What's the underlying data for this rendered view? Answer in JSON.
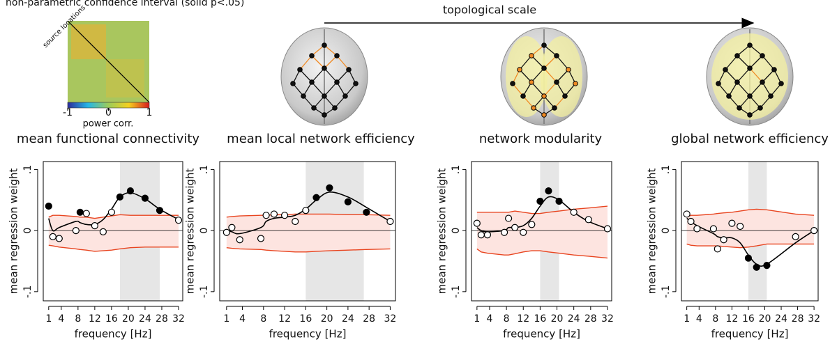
{
  "header": {
    "note": "non-parametric confidence interval (solid p<.05)"
  },
  "matrix": {
    "axis_label": "source locations"
  },
  "colorbar": {
    "label": "power corr.",
    "lim": [
      -1,
      1
    ],
    "ticks": [
      -1,
      0,
      1
    ]
  },
  "arrow_label": "topological scale",
  "chart_data": [
    {
      "type": "scatter",
      "title": "mean functional connectivity",
      "xlabel": "frequency [Hz]",
      "ylabel": "mean regression weight",
      "x": [
        1,
        2,
        3.5,
        7.5,
        8.5,
        10,
        12,
        14,
        16,
        18,
        20.5,
        24,
        27.5,
        32
      ],
      "values": [
        0.04,
        -0.01,
        -0.013,
        0.0,
        0.03,
        0.028,
        0.008,
        -0.002,
        0.03,
        0.055,
        0.065,
        0.053,
        0.033,
        0.017
      ],
      "significant": [
        true,
        false,
        false,
        false,
        true,
        false,
        false,
        false,
        false,
        true,
        true,
        true,
        true,
        false
      ],
      "fit": [
        0.02,
        0.0,
        0.005,
        0.015,
        0.013,
        0.01,
        0.01,
        0.018,
        0.035,
        0.055,
        0.062,
        0.052,
        0.035,
        0.018
      ],
      "ci_upper": [
        0.022,
        0.025,
        0.025,
        0.023,
        0.022,
        0.022,
        0.02,
        0.022,
        0.024,
        0.026,
        0.025,
        0.025,
        0.025,
        0.025
      ],
      "ci_lower": [
        -0.024,
        -0.025,
        -0.027,
        -0.03,
        -0.031,
        -0.032,
        -0.034,
        -0.033,
        -0.032,
        -0.03,
        -0.028,
        -0.027,
        -0.027,
        -0.027
      ],
      "highlight": [
        18,
        27.5
      ],
      "color": "#000000",
      "ci_color": "#e8441f",
      "ci_fill": "#fde4e0",
      "highlight_color": "#e6e6e6",
      "xlim": [
        -0.3,
        33
      ],
      "ylim": [
        -0.115,
        0.113
      ],
      "xticks": [
        1,
        4,
        8,
        12,
        16,
        20,
        24,
        28,
        32
      ],
      "yticks": [
        {
          "value": -0.1,
          "label": "-.1"
        },
        0,
        {
          "value": 0.1,
          "label": ".1"
        }
      ]
    },
    {
      "type": "scatter",
      "title": "mean local network efficiency",
      "xlabel": "frequency [Hz]",
      "ylabel": "mean regression weight",
      "x": [
        1,
        2,
        3.5,
        7.5,
        8.5,
        10,
        12,
        14,
        16,
        18,
        20.5,
        24,
        27.5,
        32
      ],
      "values": [
        -0.003,
        0.005,
        -0.015,
        -0.013,
        0.025,
        0.027,
        0.025,
        0.015,
        0.033,
        0.054,
        0.07,
        0.047,
        0.03,
        0.015
      ],
      "significant": [
        false,
        false,
        false,
        false,
        false,
        false,
        false,
        false,
        false,
        true,
        true,
        true,
        true,
        false
      ],
      "fit": [
        0.0,
        -0.002,
        -0.005,
        0.005,
        0.015,
        0.02,
        0.022,
        0.025,
        0.035,
        0.05,
        0.063,
        0.055,
        0.038,
        0.015
      ],
      "ci_upper": [
        0.022,
        0.023,
        0.024,
        0.025,
        0.025,
        0.026,
        0.026,
        0.027,
        0.027,
        0.027,
        0.027,
        0.026,
        0.026,
        0.025
      ],
      "ci_lower": [
        -0.028,
        -0.029,
        -0.03,
        -0.031,
        -0.032,
        -0.033,
        -0.034,
        -0.035,
        -0.035,
        -0.034,
        -0.033,
        -0.032,
        -0.031,
        -0.03
      ],
      "highlight": [
        16,
        27
      ],
      "color": "#000000",
      "ci_color": "#e8441f",
      "ci_fill": "#fde4e0",
      "highlight_color": "#e6e6e6",
      "xlim": [
        -0.3,
        33
      ],
      "ylim": [
        -0.115,
        0.113
      ],
      "xticks": [
        1,
        4,
        8,
        12,
        16,
        20,
        24,
        28,
        32
      ],
      "yticks": [
        {
          "value": -0.1,
          "label": "-.1"
        },
        0,
        {
          "value": 0.1,
          "label": ".1"
        }
      ]
    },
    {
      "type": "scatter",
      "title": "network modularity",
      "xlabel": "frequency [Hz]",
      "ylabel": "mean regression weight",
      "x": [
        1,
        2,
        3.5,
        7.5,
        8.5,
        10,
        12,
        14,
        16,
        18,
        20.5,
        24,
        27.5,
        32
      ],
      "values": [
        0.012,
        -0.007,
        -0.007,
        -0.003,
        0.02,
        0.005,
        -0.003,
        0.01,
        0.048,
        0.065,
        0.048,
        0.03,
        0.018,
        0.003
      ],
      "significant": [
        false,
        false,
        false,
        false,
        false,
        false,
        false,
        false,
        true,
        true,
        true,
        false,
        false,
        false
      ],
      "fit": [
        0.005,
        0.0,
        -0.002,
        0.0,
        0.005,
        0.005,
        0.008,
        0.02,
        0.04,
        0.055,
        0.05,
        0.03,
        0.015,
        0.003
      ],
      "ci_upper": [
        0.03,
        0.03,
        0.03,
        0.03,
        0.03,
        0.032,
        0.03,
        0.028,
        0.028,
        0.03,
        0.032,
        0.035,
        0.037,
        0.04
      ],
      "ci_lower": [
        -0.03,
        -0.035,
        -0.037,
        -0.04,
        -0.04,
        -0.038,
        -0.035,
        -0.033,
        -0.033,
        -0.035,
        -0.037,
        -0.04,
        -0.042,
        -0.045
      ],
      "highlight": [
        16,
        20.5
      ],
      "color": "#000000",
      "ci_color": "#e8441f",
      "ci_fill": "#fde4e0",
      "highlight_color": "#e6e6e6",
      "xlim": [
        -0.3,
        33
      ],
      "ylim": [
        -0.115,
        0.113
      ],
      "xticks": [
        1,
        4,
        8,
        12,
        16,
        20,
        24,
        28,
        32
      ],
      "yticks": [
        {
          "value": -0.1,
          "label": "-.1"
        },
        0,
        {
          "value": 0.1,
          "label": ".1"
        }
      ]
    },
    {
      "type": "scatter",
      "title": "global network efficiency",
      "xlabel": "frequency [Hz]",
      "ylabel": "mean regression weight",
      "x": [
        1,
        2,
        3.5,
        7.5,
        8.5,
        10,
        12,
        14,
        16,
        18,
        20.5,
        27.5,
        32
      ],
      "values": [
        0.027,
        0.015,
        0.003,
        0.003,
        -0.03,
        -0.015,
        0.012,
        0.007,
        -0.045,
        -0.06,
        -0.057,
        -0.01,
        0.0
      ],
      "significant": [
        false,
        false,
        false,
        false,
        false,
        false,
        false,
        false,
        true,
        true,
        true,
        false,
        false
      ],
      "fit": [
        0.02,
        0.015,
        0.008,
        -0.005,
        -0.01,
        -0.012,
        -0.012,
        -0.02,
        -0.04,
        -0.055,
        -0.055,
        -0.02,
        0.0
      ],
      "ci_upper": [
        0.022,
        0.025,
        0.025,
        0.027,
        0.028,
        0.029,
        0.03,
        0.032,
        0.034,
        0.035,
        0.034,
        0.027,
        0.025
      ],
      "ci_lower": [
        -0.022,
        -0.024,
        -0.025,
        -0.025,
        -0.025,
        -0.026,
        -0.027,
        -0.028,
        -0.027,
        -0.025,
        -0.022,
        -0.022,
        -0.022
      ],
      "highlight": [
        16,
        20.5
      ],
      "color": "#000000",
      "ci_color": "#e8441f",
      "ci_fill": "#fde4e0",
      "highlight_color": "#e6e6e6",
      "xlim": [
        -0.3,
        33
      ],
      "ylim": [
        -0.115,
        0.113
      ],
      "xticks": [
        1,
        4,
        8,
        12,
        16,
        20,
        24,
        28,
        32
      ],
      "yticks": [
        {
          "value": -0.1,
          "label": "-.1"
        },
        0,
        {
          "value": 0.1,
          "label": ".1"
        }
      ]
    }
  ]
}
